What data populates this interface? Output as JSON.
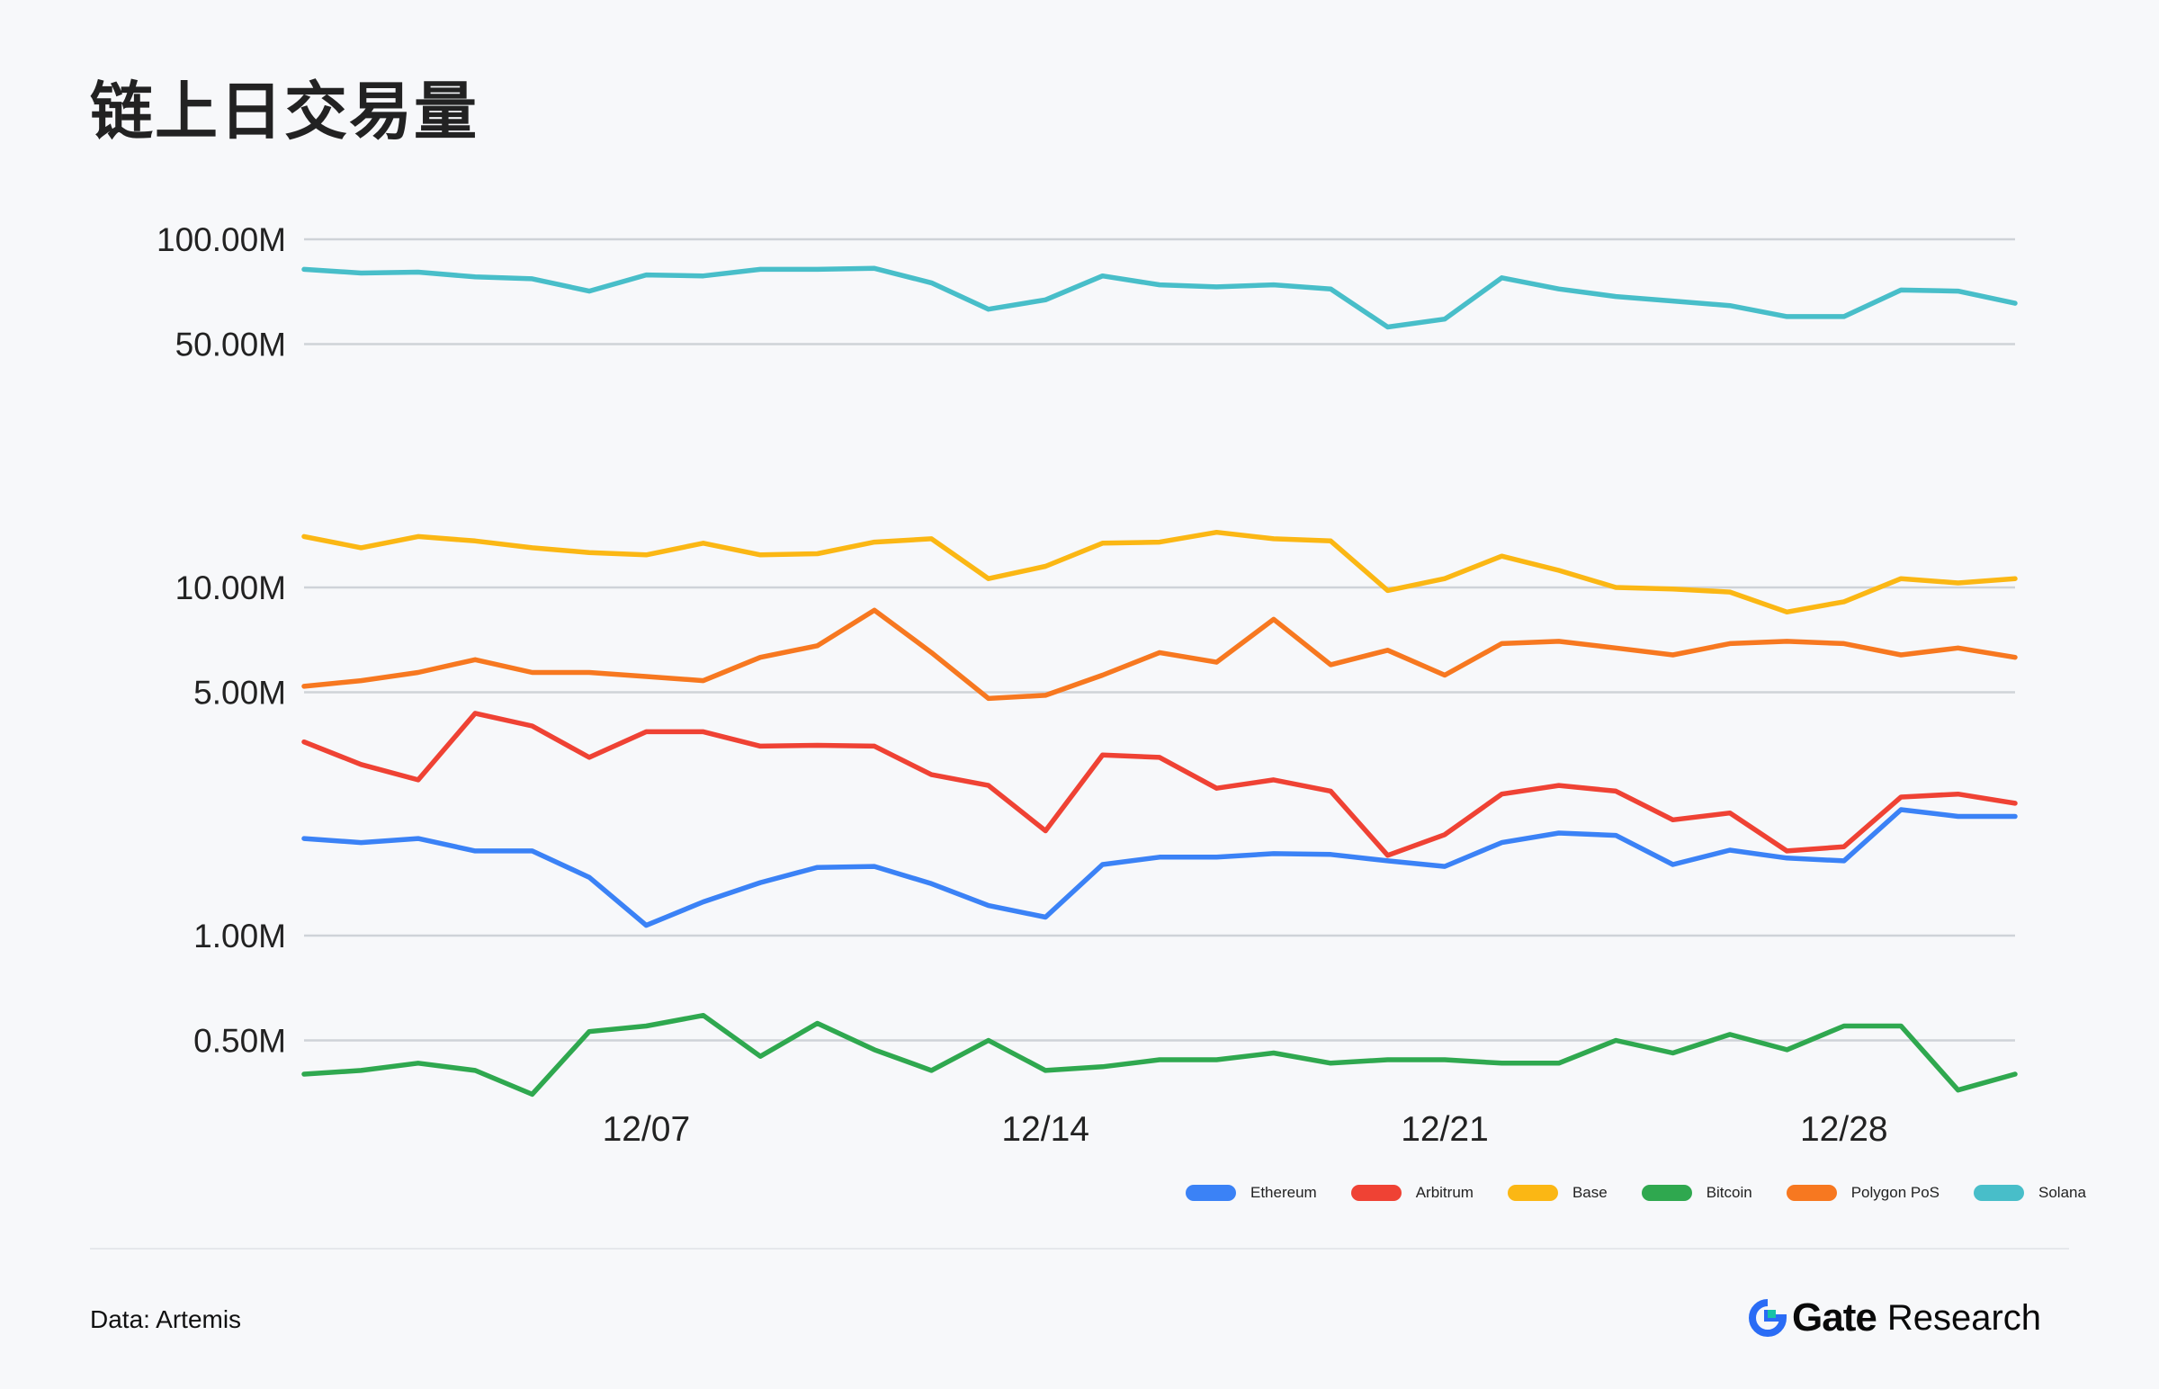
{
  "title": "链上日交易量",
  "source": "Data: Artemis",
  "brand": {
    "logo_icon": "gate-logo-icon",
    "name_bold": "Gate",
    "name_light": "Research"
  },
  "chart_data": {
    "type": "line",
    "title": "链上日交易量",
    "y_scale": "log",
    "ylim": [
      0.4,
      100
    ],
    "y_ticks": [
      {
        "value": 100,
        "label": "100.00M"
      },
      {
        "value": 50,
        "label": "50.00M"
      },
      {
        "value": 10,
        "label": "10.00M"
      },
      {
        "value": 5,
        "label": "5.00M"
      },
      {
        "value": 1,
        "label": "1.00M"
      },
      {
        "value": 0.5,
        "label": "0.50M"
      }
    ],
    "x_ticks": [
      {
        "index": 6,
        "label": "12/07"
      },
      {
        "index": 13,
        "label": "12/14"
      },
      {
        "index": 20,
        "label": "12/21"
      },
      {
        "index": 27,
        "label": "12/28"
      }
    ],
    "x": [
      "12/01",
      "12/02",
      "12/03",
      "12/04",
      "12/05",
      "12/06",
      "12/07",
      "12/08",
      "12/09",
      "12/10",
      "12/11",
      "12/12",
      "12/13",
      "12/14",
      "12/15",
      "12/16",
      "12/17",
      "12/18",
      "12/19",
      "12/20",
      "12/21",
      "12/22",
      "12/23",
      "12/24",
      "12/25",
      "12/26",
      "12/27",
      "12/28",
      "12/29",
      "12/30",
      "12/31"
    ],
    "unit": "M",
    "series": [
      {
        "name": "Ethereum",
        "color": "#3b82f6",
        "values": [
          1.9,
          1.85,
          1.9,
          1.75,
          1.75,
          1.47,
          1.07,
          1.25,
          1.42,
          1.57,
          1.58,
          1.41,
          1.22,
          1.13,
          1.6,
          1.68,
          1.68,
          1.72,
          1.71,
          1.64,
          1.58,
          1.85,
          1.97,
          1.94,
          1.6,
          1.76,
          1.67,
          1.64,
          2.3,
          2.2,
          2.2
        ]
      },
      {
        "name": "Arbitrum",
        "color": "#ef4234",
        "values": [
          3.6,
          3.1,
          2.8,
          4.35,
          4.0,
          3.25,
          3.85,
          3.85,
          3.5,
          3.52,
          3.5,
          2.9,
          2.7,
          2.0,
          3.3,
          3.25,
          2.65,
          2.8,
          2.6,
          1.7,
          1.95,
          2.55,
          2.7,
          2.6,
          2.15,
          2.25,
          1.75,
          1.8,
          2.5,
          2.55,
          2.4
        ]
      },
      {
        "name": "Base",
        "color": "#fbb714",
        "values": [
          14.0,
          13.0,
          14.0,
          13.6,
          13.0,
          12.6,
          12.4,
          13.4,
          12.4,
          12.5,
          13.5,
          13.8,
          10.6,
          11.5,
          13.4,
          13.5,
          14.4,
          13.8,
          13.6,
          9.8,
          10.6,
          12.3,
          11.2,
          10.0,
          9.9,
          9.7,
          8.5,
          9.1,
          10.6,
          10.3,
          10.6
        ]
      },
      {
        "name": "Bitcoin",
        "color": "#2fa84f",
        "values": [
          0.4,
          0.41,
          0.43,
          0.41,
          0.35,
          0.53,
          0.55,
          0.59,
          0.45,
          0.56,
          0.47,
          0.41,
          0.5,
          0.41,
          0.42,
          0.44,
          0.44,
          0.46,
          0.43,
          0.44,
          0.44,
          0.43,
          0.43,
          0.5,
          0.46,
          0.52,
          0.47,
          0.55,
          0.55,
          0.36,
          0.4
        ]
      },
      {
        "name": "Polygon PoS",
        "color": "#f77820",
        "values": [
          5.2,
          5.4,
          5.7,
          6.2,
          5.7,
          5.7,
          5.55,
          5.4,
          6.3,
          6.8,
          8.6,
          6.5,
          4.8,
          4.9,
          5.6,
          6.5,
          6.1,
          8.1,
          6.0,
          6.6,
          5.6,
          6.9,
          7.0,
          6.7,
          6.4,
          6.9,
          7.0,
          6.9,
          6.4,
          6.7,
          6.3
        ]
      },
      {
        "name": "Solana",
        "color": "#48bec9",
        "values": [
          82,
          80,
          80.5,
          78,
          77,
          71,
          79,
          78.5,
          82,
          82,
          82.5,
          75,
          63,
          67,
          78.5,
          74,
          73,
          74,
          72,
          56,
          59,
          77.5,
          72,
          68.5,
          66.5,
          64.5,
          60,
          60,
          71.5,
          71,
          65.5
        ]
      }
    ],
    "legend_position": "bottom-right",
    "grid": true
  }
}
